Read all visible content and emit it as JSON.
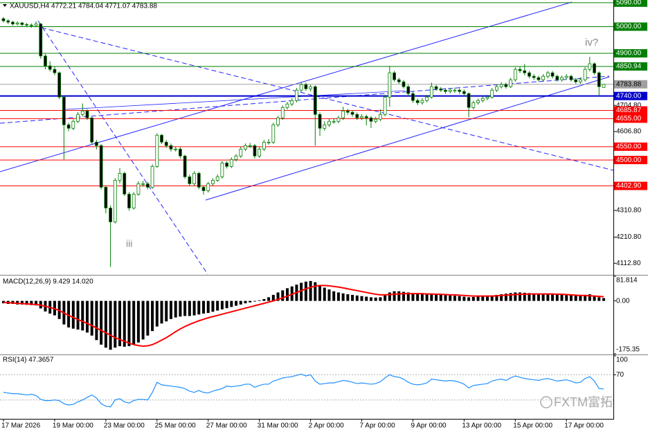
{
  "chart_data": [
    {
      "type": "candlestick",
      "title": "XAUUSD,H4  4772.21 4784.04 4771.07 4783.88",
      "annotations": [
        "iii",
        "iv?"
      ],
      "watermark": "FXTM富拓",
      "colors": {
        "up": "#ffffff",
        "down": "#000000",
        "line": "#007f00"
      },
      "categories": [
        "17 Mar 2026",
        null,
        null,
        null,
        null,
        null,
        null,
        null,
        null,
        null,
        null,
        "19 Mar 00:00",
        null,
        null,
        null,
        null,
        null,
        null,
        null,
        null,
        null,
        null,
        "23 Mar 00:00",
        null,
        null,
        null,
        null,
        null,
        null,
        null,
        null,
        null,
        null,
        "25 Mar 00:00",
        null,
        null,
        null,
        null,
        null,
        null,
        null,
        null,
        null,
        null,
        "27 Mar 00:00",
        null,
        null,
        null,
        null,
        null,
        null,
        null,
        null,
        null,
        null,
        "31 Mar 00:00",
        null,
        null,
        null,
        null,
        null,
        null,
        null,
        null,
        null,
        null,
        "2 Apr 00:00",
        null,
        null,
        null,
        null,
        null,
        null,
        null,
        null,
        null,
        null,
        "7 Apr 00:00",
        null,
        null,
        null,
        null,
        null,
        null,
        null,
        null,
        null,
        null,
        "9 Apr 00:00",
        null,
        null,
        null,
        null,
        null,
        null,
        null,
        null,
        null,
        null,
        "13 Apr 00:00",
        null,
        null,
        null,
        null,
        null,
        null,
        null,
        null,
        null,
        null,
        "15 Apr 00:00",
        null,
        null,
        null,
        null,
        null,
        null,
        null,
        null,
        null,
        null,
        "17 Apr 00:00",
        null,
        null,
        null,
        null,
        null,
        null,
        null,
        null
      ],
      "open": [
        5030,
        5022,
        5017,
        5010,
        5014,
        5008,
        5006,
        5004,
        5010,
        4890,
        4853,
        4840,
        4827,
        4736,
        4632,
        4619,
        4645,
        4671,
        4684,
        4658,
        4567,
        4554,
        4398,
        4320,
        4268,
        4424,
        4450,
        4372,
        4320,
        4372,
        4411,
        4411,
        4398,
        4476,
        4593,
        4567,
        4554,
        4541,
        4541,
        4515,
        4437,
        4411,
        4450,
        4398,
        4385,
        4411,
        4424,
        4437,
        4489,
        4476,
        4502,
        4515,
        4541,
        4554,
        4554,
        4515,
        4541,
        4567,
        4567,
        4632,
        4658,
        4697,
        4710,
        4723,
        4762,
        4783,
        4767,
        4775,
        4671,
        4619,
        4632,
        4645,
        4645,
        4658,
        4684,
        4679,
        4671,
        4658,
        4663,
        4658,
        4645,
        4653,
        4671,
        4736,
        4827,
        4801,
        4793,
        4775,
        4749,
        4723,
        4715,
        4723,
        4736,
        4775,
        4767,
        4762,
        4757,
        4762,
        4762,
        4757,
        4749,
        4697,
        4715,
        4723,
        4731,
        4736,
        4762,
        4775,
        4783,
        4775,
        4801,
        4840,
        4835,
        4827,
        4814,
        4809,
        4801,
        4814,
        4827,
        4814,
        4801,
        4809,
        4814,
        4801,
        4793,
        4801,
        4840,
        4861,
        4827,
        4772.21
      ],
      "high": [
        5036,
        5028,
        5022,
        5020,
        5018,
        5014,
        5012,
        5020,
        5014,
        4898,
        4870,
        4850,
        4832,
        4742,
        4640,
        4652,
        4680,
        4712,
        4690,
        4662,
        4575,
        4560,
        4404,
        4330,
        4432,
        4470,
        4456,
        4380,
        4380,
        4420,
        4422,
        4418,
        4484,
        4600,
        4598,
        4575,
        4562,
        4550,
        4548,
        4520,
        4445,
        4458,
        4456,
        4404,
        4418,
        4432,
        4446,
        4496,
        4495,
        4510,
        4522,
        4550,
        4562,
        4564,
        4560,
        4548,
        4575,
        4578,
        4640,
        4666,
        4705,
        4718,
        4732,
        4770,
        4792,
        4790,
        4782,
        4780,
        4678,
        4645,
        4654,
        4656,
        4666,
        4700,
        4692,
        4686,
        4678,
        4672,
        4670,
        4665,
        4662,
        4690,
        4744,
        4853,
        4834,
        4808,
        4800,
        4782,
        4756,
        4730,
        4732,
        4744,
        4790,
        4782,
        4774,
        4770,
        4770,
        4772,
        4768,
        4764,
        4754,
        4722,
        4730,
        4738,
        4744,
        4770,
        4782,
        4792,
        4790,
        4808,
        4848,
        4850,
        4860,
        4834,
        4822,
        4816,
        4822,
        4834,
        4834,
        4820,
        4816,
        4822,
        4820,
        4808,
        4810,
        4848,
        4887,
        4866,
        4832,
        4784.04
      ],
      "low": [
        5016,
        5010,
        5004,
        5004,
        5002,
        4998,
        4996,
        4998,
        4880,
        4840,
        4832,
        4818,
        4728,
        4502,
        4608,
        4612,
        4638,
        4664,
        4650,
        4560,
        4540,
        4390,
        4300,
        4099,
        4262,
        4412,
        4365,
        4310,
        4314,
        4366,
        4400,
        4390,
        4392,
        4470,
        4560,
        4546,
        4532,
        4532,
        4506,
        4430,
        4402,
        4404,
        4390,
        4370,
        4378,
        4404,
        4418,
        4430,
        4468,
        4470,
        4495,
        4508,
        4534,
        4545,
        4506,
        4508,
        4534,
        4558,
        4560,
        4625,
        4650,
        4690,
        4702,
        4716,
        4755,
        4760,
        4758,
        4554,
        4590,
        4610,
        4624,
        4636,
        4638,
        4650,
        4670,
        4662,
        4650,
        4650,
        4630,
        4620,
        4638,
        4646,
        4664,
        4700,
        4794,
        4786,
        4768,
        4740,
        4714,
        4706,
        4708,
        4716,
        4730,
        4760,
        4755,
        4748,
        4750,
        4752,
        4748,
        4740,
        4660,
        4690,
        4708,
        4716,
        4724,
        4730,
        4755,
        4768,
        4768,
        4770,
        4794,
        4826,
        4818,
        4806,
        4800,
        4794,
        4794,
        4806,
        4806,
        4794,
        4794,
        4802,
        4794,
        4786,
        4786,
        4794,
        4832,
        4820,
        4740,
        4771.07
      ],
      "close": [
        5022,
        5017,
        5010,
        5014,
        5008,
        5006,
        5004,
        5010,
        4890,
        4853,
        4840,
        4827,
        4736,
        4632,
        4619,
        4645,
        4671,
        4684,
        4658,
        4567,
        4554,
        4398,
        4320,
        4268,
        4424,
        4450,
        4372,
        4320,
        4372,
        4411,
        4411,
        4398,
        4476,
        4593,
        4567,
        4554,
        4541,
        4541,
        4515,
        4437,
        4411,
        4450,
        4398,
        4385,
        4411,
        4424,
        4437,
        4489,
        4476,
        4502,
        4515,
        4541,
        4554,
        4554,
        4515,
        4541,
        4567,
        4567,
        4632,
        4658,
        4697,
        4710,
        4723,
        4762,
        4783,
        4767,
        4775,
        4671,
        4619,
        4632,
        4645,
        4645,
        4658,
        4684,
        4679,
        4671,
        4658,
        4663,
        4658,
        4645,
        4653,
        4671,
        4736,
        4827,
        4801,
        4793,
        4775,
        4749,
        4723,
        4715,
        4723,
        4736,
        4775,
        4767,
        4762,
        4757,
        4762,
        4762,
        4757,
        4749,
        4697,
        4715,
        4723,
        4731,
        4736,
        4762,
        4775,
        4783,
        4775,
        4801,
        4840,
        4835,
        4827,
        4814,
        4809,
        4801,
        4814,
        4827,
        4814,
        4801,
        4809,
        4814,
        4801,
        4793,
        4801,
        4840,
        4861,
        4827,
        4775,
        4783.88
      ],
      "ylim": [
        4072,
        5100
      ],
      "yticks": [
        {
          "value": 4704.8,
          "label": "4704.80"
        },
        {
          "value": 4606.8,
          "label": "4606.80"
        },
        {
          "value": 4310.8,
          "label": "4310.80"
        },
        {
          "value": 4210.8,
          "label": "4210.80"
        },
        {
          "value": 4112.8,
          "label": "4112.80"
        }
      ],
      "levels": [
        {
          "value": 5090,
          "label": "5090.00",
          "color": "#007f00",
          "text_color": "#ffffff",
          "width": 1
        },
        {
          "value": 5000,
          "label": "5000.00",
          "color": "#007f00",
          "text_color": "#ffffff",
          "width": 1
        },
        {
          "value": 4900,
          "label": "4900.00",
          "color": "#007f00",
          "text_color": "#ffffff",
          "width": 1
        },
        {
          "value": 4850.94,
          "label": "4850.94",
          "color": "#007f00",
          "text_color": "#ffffff",
          "width": 1
        },
        {
          "value": 4783.88,
          "label": "4783.88",
          "color": "#a0a0a0",
          "text_color": "#000000",
          "width": 1
        },
        {
          "value": 4740,
          "label": "4740.00",
          "color": "#0000cd",
          "text_color": "#ffffff",
          "width": 2
        },
        {
          "value": 4685.87,
          "label": "4685.87",
          "color": "#ff0000",
          "text_color": "#ffffff",
          "width": 1
        },
        {
          "value": 4655,
          "label": "4655.00",
          "color": "#ff0000",
          "text_color": "#ffffff",
          "width": 1
        },
        {
          "value": 4550,
          "label": "4550.00",
          "color": "#ff0000",
          "text_color": "#ffffff",
          "width": 1
        },
        {
          "value": 4500,
          "label": "4500.00",
          "color": "#ff0000",
          "text_color": "#ffffff",
          "width": 1
        },
        {
          "value": 4402.9,
          "label": "4402.90",
          "color": "#ff0000",
          "text_color": "#ffffff",
          "width": 1
        }
      ]
    },
    {
      "type": "macd",
      "title": "MACD(12,26,9) 9.429 14.020",
      "ylim": [
        -175.35,
        81.814
      ],
      "yticks": [
        {
          "value": 81.814,
          "label": "81.814"
        },
        {
          "value": 0,
          "label": "0.00"
        },
        {
          "value": -175.35,
          "label": "-175.35"
        }
      ],
      "series": [
        {
          "name": "MACD",
          "color": "#000000",
          "values": [
            -8,
            -10,
            -10,
            -12,
            -12,
            -13,
            -14,
            -15,
            -25,
            -35,
            -42,
            -48,
            -60,
            -78,
            -88,
            -92,
            -95,
            -98,
            -105,
            -115,
            -130,
            -145,
            -155,
            -162,
            -155,
            -150,
            -152,
            -150,
            -145,
            -138,
            -128,
            -115,
            -100,
            -85,
            -75,
            -68,
            -60,
            -55,
            -52,
            -50,
            -50,
            -48,
            -45,
            -42,
            -40,
            -36,
            -32,
            -28,
            -24,
            -20,
            -16,
            -12,
            -8,
            -5,
            -2,
            2,
            6,
            12,
            20,
            28,
            35,
            42,
            48,
            54,
            60,
            64,
            66,
            62,
            52,
            44,
            38,
            32,
            28,
            25,
            22,
            20,
            18,
            16,
            14,
            12,
            11,
            12,
            18,
            28,
            32,
            32,
            30,
            28,
            26,
            24,
            22,
            22,
            22,
            21,
            20,
            19,
            18,
            17,
            16,
            14,
            12,
            13,
            14,
            15,
            16,
            18,
            20,
            22,
            24,
            26,
            28,
            28,
            27,
            26,
            25,
            24,
            24,
            24,
            23,
            22,
            21,
            20,
            19,
            18,
            18,
            20,
            22,
            18,
            12,
            9.429
          ]
        },
        {
          "name": "Signal",
          "color": "#ff0000",
          "values": [
            -5,
            -6,
            -7,
            -8,
            -9,
            -10,
            -11,
            -12,
            -14,
            -18,
            -22,
            -26,
            -32,
            -40,
            -48,
            -55,
            -62,
            -68,
            -75,
            -82,
            -90,
            -98,
            -106,
            -114,
            -122,
            -128,
            -134,
            -140,
            -145,
            -148,
            -150,
            -149,
            -145,
            -138,
            -130,
            -122,
            -112,
            -102,
            -93,
            -85,
            -78,
            -72,
            -66,
            -61,
            -56,
            -52,
            -48,
            -44,
            -40,
            -36,
            -32,
            -28,
            -24,
            -20,
            -16,
            -12,
            -8,
            -4,
            0,
            5,
            10,
            16,
            22,
            28,
            34,
            40,
            45,
            49,
            51,
            51,
            50,
            48,
            46,
            43,
            40,
            37,
            34,
            31,
            28,
            25,
            22,
            20,
            20,
            21,
            22,
            23,
            24,
            24,
            24,
            24,
            24,
            23,
            23,
            22,
            22,
            21,
            20,
            20,
            19,
            18,
            17,
            16,
            16,
            16,
            16,
            16,
            17,
            18,
            19,
            20,
            21,
            22,
            22,
            23,
            23,
            23,
            23,
            23,
            23,
            22,
            22,
            21,
            20,
            19,
            18,
            18,
            17,
            16,
            15,
            14.02
          ]
        }
      ]
    },
    {
      "type": "line",
      "title": "RSI(14) 47.3657",
      "color": "#1e90ff",
      "ylim": [
        0,
        100
      ],
      "yticks": [
        100,
        70
      ],
      "levels": [
        70,
        30
      ],
      "values": [
        42,
        41,
        40,
        40,
        39,
        38,
        39,
        37,
        31,
        29,
        29,
        30,
        29,
        24,
        22,
        23,
        27,
        30,
        34,
        38,
        33,
        24,
        20,
        19,
        30,
        32,
        27,
        25,
        29,
        31,
        31,
        30,
        42,
        58,
        54,
        53,
        52,
        51,
        50,
        48,
        44,
        42,
        45,
        42,
        41,
        44,
        46,
        48,
        52,
        51,
        52,
        53,
        55,
        55,
        50,
        53,
        55,
        55,
        60,
        62,
        65,
        66,
        67,
        69,
        71,
        68,
        70,
        60,
        55,
        56,
        57,
        57,
        59,
        61,
        60,
        58,
        56,
        57,
        56,
        55,
        56,
        59,
        65,
        70,
        67,
        66,
        63,
        58,
        55,
        54,
        55,
        57,
        63,
        62,
        61,
        60,
        61,
        60,
        58,
        55,
        49,
        53,
        54,
        55,
        56,
        60,
        62,
        63,
        61,
        65,
        68,
        66,
        64,
        63,
        62,
        61,
        63,
        64,
        62,
        60,
        61,
        62,
        60,
        57,
        58,
        64,
        67,
        60,
        48,
        47.3657
      ]
    }
  ]
}
